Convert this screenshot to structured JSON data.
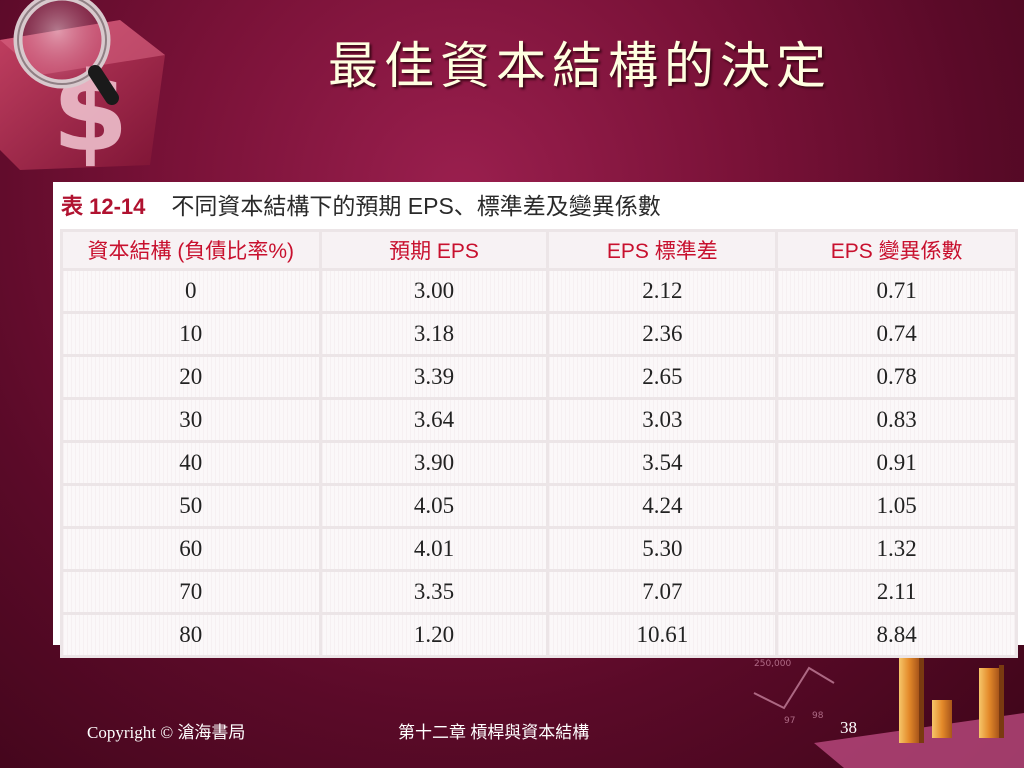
{
  "slide": {
    "title": "最佳資本結構的決定"
  },
  "table": {
    "caption_label": "表 12-14",
    "caption_text": "不同資本結構下的預期 EPS、標準差及變異係數",
    "headers": [
      "資本結構 (負債比率%)",
      "預期 EPS",
      "EPS 標準差",
      "EPS 變異係數"
    ],
    "rows": [
      [
        "0",
        "3.00",
        "2.12",
        "0.71"
      ],
      [
        "10",
        "3.18",
        "2.36",
        "0.74"
      ],
      [
        "20",
        "3.39",
        "2.65",
        "0.78"
      ],
      [
        "30",
        "3.64",
        "3.03",
        "0.83"
      ],
      [
        "40",
        "3.90",
        "3.54",
        "0.91"
      ],
      [
        "50",
        "4.05",
        "4.24",
        "1.05"
      ],
      [
        "60",
        "4.01",
        "5.30",
        "1.32"
      ],
      [
        "70",
        "3.35",
        "7.07",
        "2.11"
      ],
      [
        "80",
        "1.20",
        "10.61",
        "8.84"
      ]
    ]
  },
  "footer": {
    "copyright": "Copyright © 滄海書局",
    "chapter": "第十二章 槓桿與資本結構",
    "page": "38"
  },
  "colors": {
    "background": "#7a1238",
    "title": "#ffffe0",
    "header_text": "#c8102e",
    "caption_label": "#b01230"
  },
  "decorations": {
    "top_left": "dollar-magnifier-icon",
    "bottom_right": "bar-chart-graphic"
  }
}
